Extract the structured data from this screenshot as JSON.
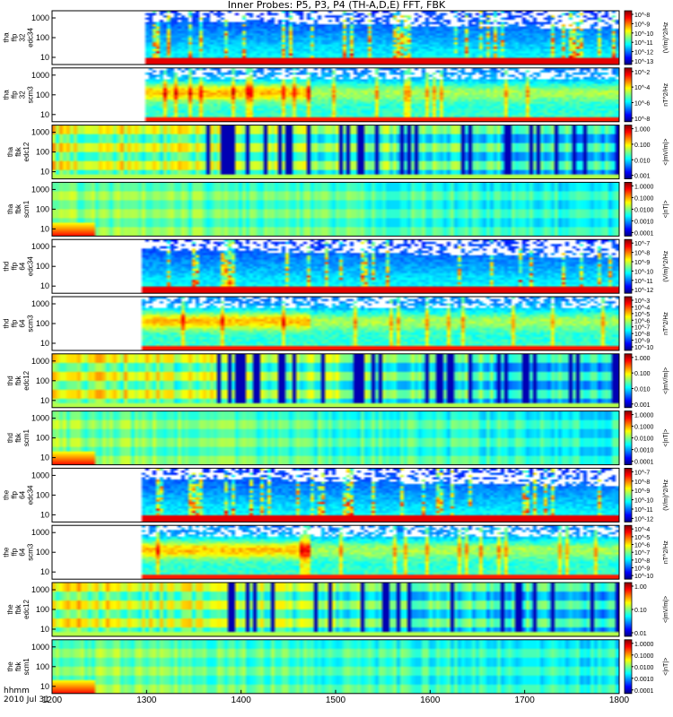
{
  "title": "Inner Probes: P5, P3, P4 (TH-A,D,E) FFT, FBK",
  "footer": {
    "time_label": "hhmm",
    "date_label": "2010 Jul 31"
  },
  "chart_data": {
    "type": "heatmap",
    "title": "Inner Probes: P5, P3, P4 (TH-A,D,E) FFT, FBK",
    "x_axis": {
      "labels": [
        "1200",
        "1300",
        "1400",
        "1500",
        "1600",
        "1700",
        "1800"
      ],
      "range": [
        "1200",
        "1800"
      ]
    },
    "panels": [
      {
        "id": "tha-ffp32-edc34",
        "ylabel": [
          "tha",
          "ffp",
          "32",
          "edc34"
        ],
        "yticks": [
          "1000",
          "100",
          "10"
        ],
        "cbar_ticks": [
          "10^-8",
          "10^-9",
          "10^-10",
          "10^-11",
          "10^-12",
          "10^-13"
        ],
        "cbar_label": "(V/m)^2/Hz",
        "data_start": 1300,
        "kind": "ffp_e"
      },
      {
        "id": "tha-ffp32-scm3",
        "ylabel": [
          "tha",
          "ffp",
          "32",
          "scm3"
        ],
        "yticks": [
          "1000",
          "100",
          "10"
        ],
        "cbar_ticks": [
          "10^-2",
          "10^-4",
          "10^-6",
          "10^-8"
        ],
        "cbar_label": "nT^2/Hz",
        "data_start": 1300,
        "kind": "ffp_b"
      },
      {
        "id": "tha-fbk-edc12",
        "ylabel": [
          "tha",
          "fbk",
          "edc12"
        ],
        "yticks": [
          "1000",
          "100",
          "10"
        ],
        "cbar_ticks": [
          "1.000",
          "0.100",
          "0.010",
          "0.001"
        ],
        "cbar_label": "<|mV/m|>",
        "data_start": 1200,
        "kind": "fbk_e"
      },
      {
        "id": "tha-fbk-scm1",
        "ylabel": [
          "tha",
          "fbk",
          "scm1"
        ],
        "yticks": [
          "1000",
          "100",
          "10"
        ],
        "cbar_ticks": [
          "1.0000",
          "0.1000",
          "0.0100",
          "0.0010",
          "0.0001"
        ],
        "cbar_label": "<|nT|>",
        "data_start": 1200,
        "kind": "fbk_b"
      },
      {
        "id": "thd-ffp64-edc34",
        "ylabel": [
          "thd",
          "ffp",
          "64",
          "edc34"
        ],
        "yticks": [
          "1000",
          "100",
          "10"
        ],
        "cbar_ticks": [
          "10^-7",
          "10^-8",
          "10^-9",
          "10^-10",
          "10^-11",
          "10^-12"
        ],
        "cbar_label": "(V/m)^2/Hz",
        "data_start": 1294,
        "kind": "ffp_e"
      },
      {
        "id": "thd-ffp64-scm3",
        "ylabel": [
          "thd",
          "ffp",
          "64",
          "scm3"
        ],
        "yticks": [
          "1000",
          "100",
          "10"
        ],
        "cbar_ticks": [
          "10^-3",
          "10^-4",
          "10^-5",
          "10^-6",
          "10^-7",
          "10^-8",
          "10^-9",
          "10^-10"
        ],
        "cbar_label": "nT^2/Hz",
        "data_start": 1294,
        "kind": "ffp_b"
      },
      {
        "id": "thd-fbk-edc12",
        "ylabel": [
          "thd",
          "fbk",
          "edc12"
        ],
        "yticks": [
          "1000",
          "100",
          "10"
        ],
        "cbar_ticks": [
          "1.000",
          "0.100",
          "0.010",
          "0.001"
        ],
        "cbar_label": "<|mV/m|>",
        "data_start": 1200,
        "kind": "fbk_e"
      },
      {
        "id": "thd-fbk-scm1",
        "ylabel": [
          "thd",
          "fbk",
          "scm1"
        ],
        "yticks": [
          "1000",
          "100",
          "10"
        ],
        "cbar_ticks": [
          "1.0000",
          "0.1000",
          "0.0100",
          "0.0010",
          "0.0001"
        ],
        "cbar_label": "<|nT|>",
        "data_start": 1200,
        "kind": "fbk_b"
      },
      {
        "id": "the-ffp64-edc34",
        "ylabel": [
          "the",
          "ffp",
          "64",
          "edc34"
        ],
        "yticks": [
          "1000",
          "100",
          "10"
        ],
        "cbar_ticks": [
          "10^-7",
          "10^-8",
          "10^-9",
          "10^-10",
          "10^-11",
          "10^-12"
        ],
        "cbar_label": "(V/m)^2/Hz",
        "data_start": 1296,
        "kind": "ffp_e"
      },
      {
        "id": "the-ffp64-scm3",
        "ylabel": [
          "the",
          "ffp",
          "64",
          "scm3"
        ],
        "yticks": [
          "1000",
          "100",
          "10"
        ],
        "cbar_ticks": [
          "10^-4",
          "10^-5",
          "10^-6",
          "10^-7",
          "10^-8",
          "10^-9",
          "10^-10"
        ],
        "cbar_label": "nT^2/Hz",
        "data_start": 1296,
        "kind": "ffp_b"
      },
      {
        "id": "the-fbk-edc12",
        "ylabel": [
          "the",
          "fbk",
          "edc12"
        ],
        "yticks": [
          "1000",
          "100",
          "10"
        ],
        "cbar_ticks": [
          "1.00",
          "0.10",
          "0.01"
        ],
        "cbar_label": "<|mV/m|>",
        "data_start": 1200,
        "kind": "fbk_e"
      },
      {
        "id": "the-fbk-scm1",
        "ylabel": [
          "the",
          "fbk",
          "scm1"
        ],
        "yticks": [
          "1000",
          "100",
          "10"
        ],
        "cbar_ticks": [
          "1.0000",
          "0.1000",
          "0.0100",
          "0.0010",
          "0.0001"
        ],
        "cbar_label": "<|nT|>",
        "data_start": 1200,
        "kind": "fbk_b"
      }
    ]
  }
}
